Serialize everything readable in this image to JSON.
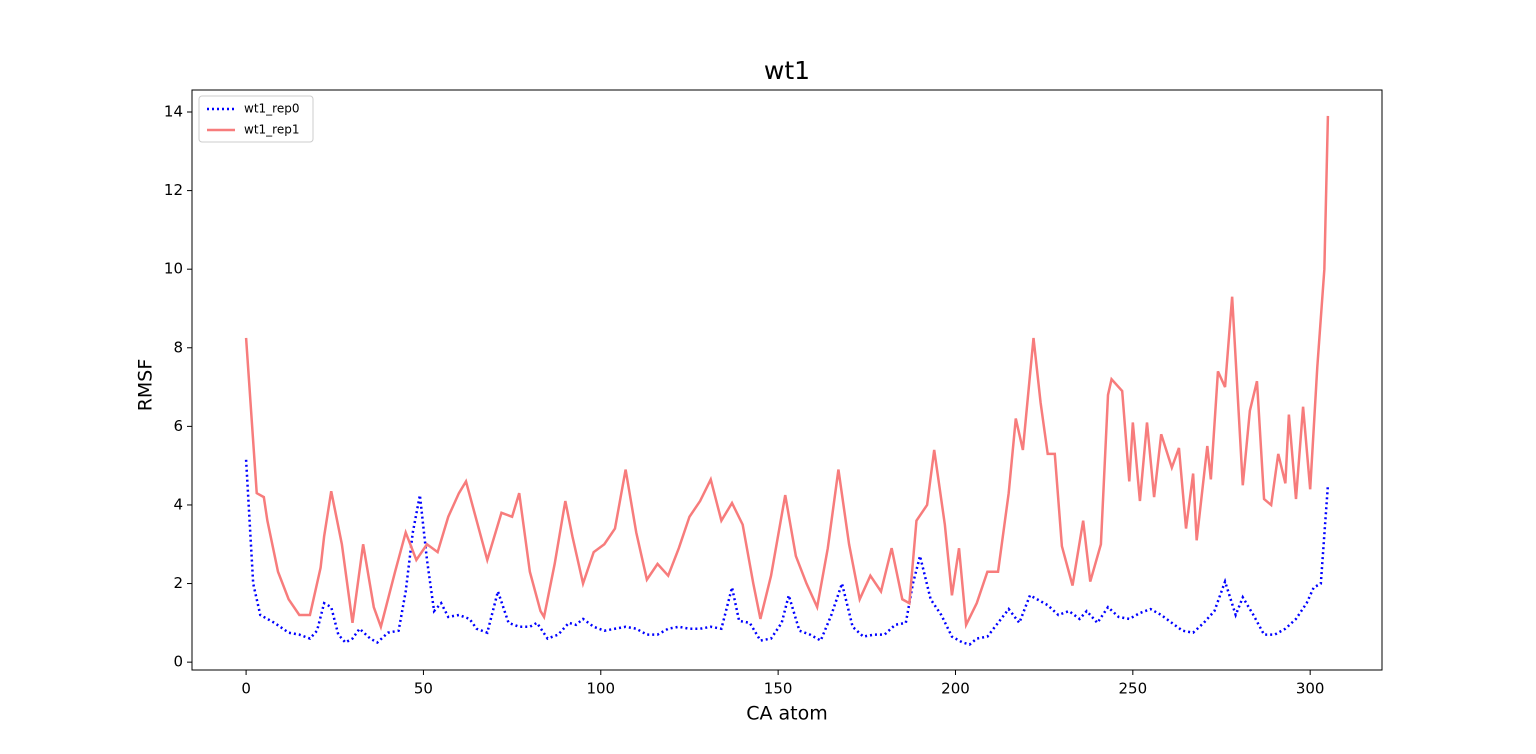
{
  "chart_data": {
    "type": "line",
    "title": "wt1",
    "x_label": "CA atom",
    "y_label": "RMSF",
    "xlim": [
      -15.25,
      320.25
    ],
    "xticks": [
      0,
      50,
      100,
      150,
      200,
      250,
      300
    ],
    "ylim": [
      -0.2,
      14.56
    ],
    "yticks": [
      0,
      2,
      4,
      6,
      8,
      10,
      12,
      14
    ],
    "grid": false,
    "legend": "upper-left",
    "series": [
      {
        "name": "wt1_rep0",
        "color": "#0000ff",
        "linestyle": "dotted",
        "x": [
          0,
          2,
          4,
          8,
          12,
          15,
          18,
          20,
          22,
          24,
          26,
          28,
          30,
          32,
          35,
          37,
          40,
          43,
          45,
          47,
          49,
          51,
          53,
          55,
          57,
          60,
          63,
          65,
          68,
          71,
          74,
          77,
          80,
          82,
          85,
          88,
          91,
          93,
          95,
          98,
          101,
          104,
          107,
          110,
          113,
          116,
          119,
          122,
          125,
          128,
          131,
          134,
          137,
          139,
          142,
          145,
          148,
          151,
          153,
          156,
          159,
          162,
          165,
          168,
          171,
          174,
          177,
          180,
          183,
          186,
          188,
          190,
          193,
          196,
          199,
          202,
          204,
          206,
          209,
          212,
          215,
          218,
          221,
          223,
          226,
          229,
          232,
          235,
          237,
          240,
          243,
          246,
          249,
          252,
          255,
          258,
          261,
          264,
          267,
          270,
          273,
          276,
          279,
          281,
          284,
          287,
          290,
          293,
          296,
          299,
          301,
          303,
          305
        ],
        "values": [
          5.15,
          2.0,
          1.2,
          1.0,
          0.75,
          0.7,
          0.6,
          0.8,
          1.5,
          1.4,
          0.7,
          0.5,
          0.6,
          0.85,
          0.6,
          0.5,
          0.75,
          0.8,
          1.8,
          3.3,
          4.25,
          2.6,
          1.3,
          1.5,
          1.15,
          1.2,
          1.1,
          0.85,
          0.75,
          1.8,
          1.0,
          0.9,
          0.9,
          1.0,
          0.6,
          0.7,
          1.0,
          0.95,
          1.1,
          0.9,
          0.8,
          0.85,
          0.9,
          0.85,
          0.7,
          0.7,
          0.85,
          0.9,
          0.85,
          0.85,
          0.9,
          0.85,
          1.9,
          1.05,
          1.0,
          0.55,
          0.6,
          1.0,
          1.7,
          0.8,
          0.7,
          0.55,
          1.2,
          2.0,
          0.9,
          0.65,
          0.7,
          0.7,
          0.95,
          1.0,
          2.0,
          2.7,
          1.6,
          1.2,
          0.65,
          0.5,
          0.45,
          0.6,
          0.65,
          1.0,
          1.35,
          1.0,
          1.7,
          1.6,
          1.45,
          1.2,
          1.3,
          1.1,
          1.3,
          1.0,
          1.4,
          1.15,
          1.1,
          1.25,
          1.35,
          1.2,
          1.0,
          0.8,
          0.75,
          1.0,
          1.3,
          2.05,
          1.2,
          1.65,
          1.2,
          0.7,
          0.7,
          0.85,
          1.1,
          1.5,
          1.9,
          2.0,
          4.5
        ]
      },
      {
        "name": "wt1_rep1",
        "color": "#f77c7c",
        "linestyle": "solid",
        "x": [
          0,
          3,
          5,
          6,
          9,
          12,
          15,
          18,
          21,
          22,
          24,
          27,
          30,
          33,
          36,
          38,
          42,
          45,
          48,
          51,
          54,
          57,
          60,
          62,
          65,
          68,
          72,
          75,
          77,
          80,
          83,
          84,
          87,
          90,
          92,
          95,
          98,
          101,
          104,
          107,
          110,
          113,
          116,
          119,
          122,
          125,
          128,
          131,
          134,
          137,
          140,
          143,
          145,
          148,
          152,
          155,
          158,
          161,
          164,
          167,
          170,
          173,
          176,
          179,
          182,
          185,
          187,
          189,
          192,
          194,
          197,
          199,
          201,
          203,
          206,
          209,
          212,
          215,
          217,
          219,
          222,
          224,
          226,
          228,
          230,
          233,
          236,
          238,
          241,
          243,
          244,
          247,
          249,
          250,
          252,
          254,
          256,
          258,
          261,
          263,
          265,
          267,
          268,
          271,
          272,
          274,
          276,
          278,
          281,
          283,
          285,
          287,
          289,
          291,
          293,
          294,
          296,
          298,
          300,
          302,
          304,
          305
        ],
        "values": [
          8.25,
          4.3,
          4.2,
          3.6,
          2.3,
          1.6,
          1.2,
          1.2,
          2.4,
          3.2,
          4.35,
          3.0,
          1.0,
          3.0,
          1.4,
          0.9,
          2.3,
          3.3,
          2.6,
          3.0,
          2.8,
          3.7,
          4.3,
          4.6,
          3.6,
          2.6,
          3.8,
          3.7,
          4.3,
          2.3,
          1.3,
          1.15,
          2.5,
          4.1,
          3.2,
          2.0,
          2.8,
          3.0,
          3.4,
          4.9,
          3.3,
          2.1,
          2.5,
          2.2,
          2.9,
          3.7,
          4.1,
          4.65,
          3.6,
          4.05,
          3.5,
          2.0,
          1.1,
          2.2,
          4.25,
          2.7,
          2.0,
          1.4,
          2.9,
          4.9,
          3.0,
          1.6,
          2.2,
          1.8,
          2.9,
          1.6,
          1.5,
          3.6,
          4.0,
          5.4,
          3.5,
          1.7,
          2.9,
          0.95,
          1.5,
          2.3,
          2.3,
          4.3,
          6.2,
          5.4,
          8.25,
          6.6,
          5.3,
          5.3,
          2.95,
          1.95,
          3.6,
          2.05,
          3.0,
          6.8,
          7.2,
          6.9,
          4.6,
          6.1,
          4.1,
          6.1,
          4.2,
          5.8,
          4.95,
          5.45,
          3.4,
          4.8,
          3.1,
          5.5,
          4.65,
          7.4,
          7.0,
          9.3,
          4.5,
          6.4,
          7.15,
          4.15,
          4.0,
          5.3,
          4.55,
          6.3,
          4.15,
          6.5,
          4.4,
          7.5,
          10.0,
          13.9
        ]
      }
    ]
  }
}
